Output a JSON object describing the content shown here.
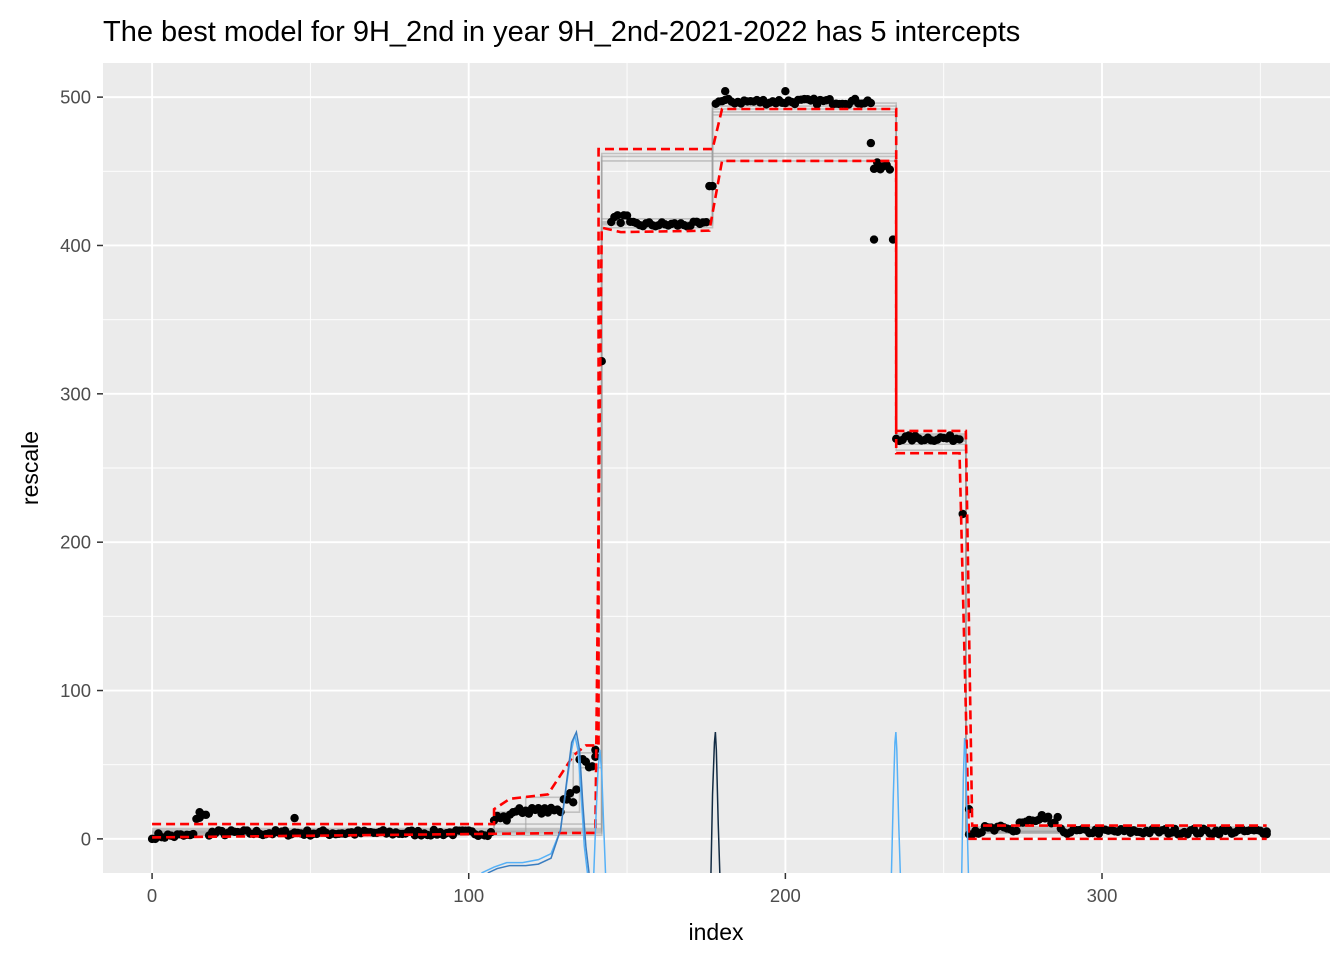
{
  "chart_data": {
    "type": "scatter",
    "title": "The best model for 9H_2nd in year 9H_2nd-2021-2022 has 5 intercepts",
    "xlabel": "index",
    "ylabel": "rescale",
    "xlim": [
      -15.5,
      372
    ],
    "ylim": [
      -23,
      523
    ],
    "xticks": [
      0,
      100,
      200,
      300
    ],
    "yticks": [
      0,
      100,
      200,
      300,
      400,
      500
    ],
    "xtick_labels": [
      "0",
      "100",
      "200",
      "300"
    ],
    "ytick_labels": [
      "0",
      "100",
      "200",
      "300",
      "400",
      "500"
    ],
    "grid": true,
    "legend": "none",
    "colors": {
      "panel": "#EBEBEB",
      "grid": "#FFFFFF",
      "points": "#000000",
      "fits": "#9E9E9E",
      "bounds": "#FF0000",
      "density_light": "#56B1F7",
      "density_mid": "#3A7DC0",
      "density_dark": "#132B43"
    },
    "series": [
      {
        "kind": "points",
        "segments": [
          {
            "x0": 1,
            "x1": 13,
            "y": 2,
            "jitter": 2
          },
          {
            "x0": 14,
            "x1": 17,
            "y": 15,
            "jitter": 3
          },
          {
            "x0": 18,
            "x1": 107,
            "y": 4,
            "jitter": 2
          },
          {
            "x0": 108,
            "x1": 113,
            "y": 14,
            "jitter": 3
          },
          {
            "x0": 114,
            "x1": 129,
            "y": 19,
            "jitter": 2
          },
          {
            "x0": 130,
            "x1": 134,
            "y": 30,
            "jitter": 6
          },
          {
            "x0": 135,
            "x1": 140,
            "y": 52,
            "jitter": 4
          },
          {
            "x0": 145,
            "x1": 150,
            "y": 418,
            "jitter": 3
          },
          {
            "x0": 151,
            "x1": 175,
            "y": 414,
            "jitter": 2
          },
          {
            "x0": 176,
            "x1": 177,
            "y": 440,
            "jitter": 0
          },
          {
            "x0": 178,
            "x1": 227,
            "y": 497,
            "jitter": 2
          },
          {
            "x0": 228,
            "x1": 233,
            "y": 452,
            "jitter": 4
          },
          {
            "x0": 235,
            "x1": 255,
            "y": 270,
            "jitter": 2
          },
          {
            "x0": 258,
            "x1": 273,
            "y": 6,
            "jitter": 3
          },
          {
            "x0": 274,
            "x1": 286,
            "y": 11,
            "jitter": 4
          },
          {
            "x0": 287,
            "x1": 352,
            "y": 5,
            "jitter": 2
          }
        ],
        "outliers": [
          [
            0,
            0
          ],
          [
            15,
            18
          ],
          [
            45,
            14
          ],
          [
            142,
            322
          ],
          [
            181,
            504
          ],
          [
            200,
            504
          ],
          [
            227,
            469
          ],
          [
            228,
            404
          ],
          [
            234,
            404
          ],
          [
            256,
            219
          ],
          [
            258,
            20
          ],
          [
            140,
            60
          ],
          [
            281,
            16
          ],
          [
            352,
            5
          ]
        ]
      },
      {
        "kind": "segmented_fits",
        "levels": [
          [
            [
              0,
              2.5
            ],
            [
              142,
              2.5
            ],
            [
              142,
              415
            ],
            [
              177,
              415
            ],
            [
              177,
              490
            ],
            [
              235,
              490
            ],
            [
              235,
              271
            ],
            [
              257,
              271
            ],
            [
              257,
              5
            ],
            [
              352,
              5
            ]
          ],
          [
            [
              0,
              4
            ],
            [
              142,
              4
            ],
            [
              142,
              412
            ],
            [
              177,
              412
            ],
            [
              177,
              496
            ],
            [
              235,
              496
            ],
            [
              235,
              268
            ],
            [
              257,
              268
            ],
            [
              257,
              4
            ],
            [
              352,
              4
            ]
          ],
          [
            [
              0,
              5
            ],
            [
              142,
              5
            ],
            [
              142,
              418
            ],
            [
              177,
              418
            ],
            [
              177,
              488
            ],
            [
              235,
              488
            ],
            [
              235,
              273
            ],
            [
              257,
              273
            ],
            [
              257,
              6
            ],
            [
              352,
              6
            ]
          ],
          [
            [
              0,
              6
            ],
            [
              142,
              6
            ],
            [
              142,
              460
            ],
            [
              235,
              460
            ],
            [
              235,
              270
            ],
            [
              257,
              270
            ],
            [
              257,
              5
            ],
            [
              352,
              5
            ]
          ],
          [
            [
              0,
              7
            ],
            [
              142,
              7
            ],
            [
              142,
              457
            ],
            [
              235,
              457
            ],
            [
              235,
              266
            ],
            [
              257,
              266
            ],
            [
              257,
              7
            ],
            [
              352,
              7
            ]
          ],
          [
            [
              0,
              3
            ],
            [
              108,
              3
            ],
            [
              108,
              10
            ],
            [
              142,
              10
            ],
            [
              142,
              414
            ],
            [
              177,
              414
            ],
            [
              177,
              492
            ],
            [
              235,
              492
            ],
            [
              235,
              272
            ],
            [
              257,
              272
            ],
            [
              257,
              4
            ],
            [
              352,
              4
            ]
          ],
          [
            [
              0,
              4
            ],
            [
              108,
              4
            ],
            [
              108,
              18
            ],
            [
              135,
              18
            ],
            [
              135,
              48
            ],
            [
              142,
              48
            ],
            [
              142,
              416
            ],
            [
              177,
              416
            ],
            [
              177,
              494
            ],
            [
              235,
              494
            ],
            [
              235,
              269
            ],
            [
              257,
              269
            ],
            [
              257,
              5
            ],
            [
              352,
              5
            ]
          ],
          [
            [
              0,
              5
            ],
            [
              118,
              5
            ],
            [
              118,
              28
            ],
            [
              133,
              28
            ],
            [
              133,
              58
            ],
            [
              142,
              58
            ],
            [
              142,
              462
            ],
            [
              235,
              462
            ],
            [
              235,
              262
            ],
            [
              257,
              262
            ],
            [
              257,
              8
            ],
            [
              352,
              8
            ]
          ]
        ]
      },
      {
        "kind": "upper_bound",
        "points": [
          [
            0,
            10
          ],
          [
            108,
            10
          ],
          [
            108,
            20
          ],
          [
            113,
            27
          ],
          [
            125,
            30
          ],
          [
            133,
            56
          ],
          [
            137,
            63
          ],
          [
            141,
            63
          ],
          [
            141,
            465
          ],
          [
            177,
            465
          ],
          [
            180,
            492
          ],
          [
            235,
            492
          ],
          [
            235,
            275
          ],
          [
            257,
            275
          ],
          [
            259,
            9
          ],
          [
            352,
            9
          ]
        ]
      },
      {
        "kind": "lower_bound",
        "points": [
          [
            0,
            1
          ],
          [
            133,
            4
          ],
          [
            140,
            4
          ],
          [
            142,
            412
          ],
          [
            148,
            409
          ],
          [
            176,
            410
          ],
          [
            180,
            457
          ],
          [
            235,
            457
          ],
          [
            235,
            260
          ],
          [
            255,
            260
          ],
          [
            258,
            0
          ],
          [
            352,
            0
          ]
        ]
      },
      {
        "kind": "density_curves",
        "curves": [
          {
            "color": "light",
            "points": [
              [
                104,
                -23
              ],
              [
                108,
                -19
              ],
              [
                112,
                -16
              ],
              [
                117,
                -16
              ],
              [
                122,
                -14
              ],
              [
                126,
                -10
              ],
              [
                129,
                6
              ],
              [
                131,
                38
              ],
              [
                132.5,
                60
              ],
              [
                133.5,
                70
              ],
              [
                134.5,
                60
              ],
              [
                135.5,
                30
              ],
              [
                136.5,
                -5
              ],
              [
                137.5,
                -23
              ]
            ]
          },
          {
            "color": "mid",
            "points": [
              [
                106,
                -23
              ],
              [
                109,
                -20
              ],
              [
                113,
                -18
              ],
              [
                118,
                -18
              ],
              [
                122,
                -17
              ],
              [
                126,
                -13
              ],
              [
                129,
                6
              ],
              [
                131,
                40
              ],
              [
                132.5,
                65
              ],
              [
                134,
                72
              ],
              [
                135,
                60
              ],
              [
                136,
                25
              ],
              [
                137,
                -5
              ],
              [
                138,
                -23
              ]
            ]
          },
          {
            "color": "light",
            "points": [
              [
                139.5,
                -23
              ],
              [
                140,
                5
              ],
              [
                140.8,
                45
              ],
              [
                141.4,
                60
              ],
              [
                142,
                45
              ],
              [
                142.6,
                10
              ],
              [
                143.2,
                -23
              ]
            ]
          },
          {
            "color": "dark",
            "points": [
              [
                176.5,
                -23
              ],
              [
                177,
                30
              ],
              [
                177.6,
                65
              ],
              [
                177.9,
                72
              ],
              [
                178.2,
                60
              ],
              [
                178.8,
                10
              ],
              [
                179.3,
                -23
              ]
            ]
          },
          {
            "color": "light",
            "points": [
              [
                233.5,
                -23
              ],
              [
                234.1,
                30
              ],
              [
                234.6,
                65
              ],
              [
                234.9,
                72
              ],
              [
                235.2,
                60
              ],
              [
                235.8,
                10
              ],
              [
                236.3,
                -23
              ]
            ]
          },
          {
            "color": "light",
            "points": [
              [
                255.7,
                -23
              ],
              [
                256.2,
                40
              ],
              [
                256.6,
                68
              ],
              [
                256.9,
                60
              ],
              [
                257.3,
                20
              ],
              [
                257.8,
                -23
              ]
            ]
          }
        ]
      }
    ]
  }
}
